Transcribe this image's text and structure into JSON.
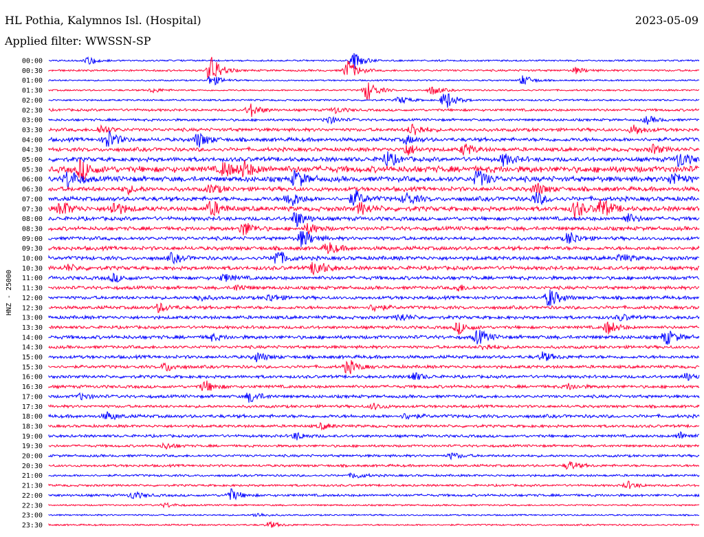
{
  "header": {
    "station": "HL Pothia, Kalymnos Isl. (Hospital)",
    "date": "2023-05-09",
    "filter": "Applied filter: WWSSN-SP"
  },
  "chart_data": {
    "type": "line",
    "title": "HL Pothia, Kalymnos Isl. (Hospital)",
    "subtitle": "Applied filter: WWSSN-SP",
    "date": "2023-05-09",
    "ylabel": "HNZ - 25000",
    "xlabel": "",
    "grid": false,
    "colors": {
      "odd_rows": "#0000ff",
      "even_rows": "#ff0033"
    },
    "rows": [
      {
        "label": "00:00",
        "color": "#0000ff",
        "level": 0.15,
        "events": [
          [
            0.06,
            0.6
          ],
          [
            0.47,
            1.0
          ]
        ]
      },
      {
        "label": "00:30",
        "color": "#ff0033",
        "level": 0.2,
        "events": [
          [
            0.25,
            2.0
          ],
          [
            0.46,
            1.4
          ],
          [
            0.81,
            0.4
          ]
        ]
      },
      {
        "label": "01:00",
        "color": "#0000ff",
        "level": 0.12,
        "events": [
          [
            0.25,
            0.8
          ],
          [
            0.73,
            0.7
          ]
        ]
      },
      {
        "label": "01:30",
        "color": "#ff0033",
        "level": 0.15,
        "events": [
          [
            0.16,
            0.3
          ],
          [
            0.49,
            1.4
          ],
          [
            0.59,
            0.6
          ]
        ]
      },
      {
        "label": "02:00",
        "color": "#0000ff",
        "level": 0.18,
        "events": [
          [
            0.54,
            0.5
          ],
          [
            0.61,
            1.3
          ]
        ]
      },
      {
        "label": "02:30",
        "color": "#ff0033",
        "level": 0.3,
        "events": [
          [
            0.31,
            0.9
          ],
          [
            0.44,
            0.4
          ]
        ]
      },
      {
        "label": "03:00",
        "color": "#0000ff",
        "level": 0.3,
        "events": [
          [
            0.43,
            0.5
          ],
          [
            0.92,
            0.5
          ]
        ]
      },
      {
        "label": "03:30",
        "color": "#ff0033",
        "level": 0.45,
        "events": [
          [
            0.08,
            0.6
          ],
          [
            0.56,
            0.9
          ],
          [
            0.9,
            0.7
          ]
        ]
      },
      {
        "label": "04:00",
        "color": "#0000ff",
        "level": 0.55,
        "events": [
          [
            0.09,
            1.3
          ],
          [
            0.23,
            1.0
          ],
          [
            0.55,
            0.5
          ]
        ]
      },
      {
        "label": "04:30",
        "color": "#ff0033",
        "level": 0.55,
        "events": [
          [
            0.55,
            0.8
          ],
          [
            0.64,
            0.8
          ],
          [
            0.93,
            0.6
          ]
        ]
      },
      {
        "label": "05:00",
        "color": "#0000ff",
        "level": 0.65,
        "events": [
          [
            0.52,
            1.0
          ],
          [
            0.7,
            0.8
          ],
          [
            0.97,
            1.1
          ]
        ]
      },
      {
        "label": "05:30",
        "color": "#ff0033",
        "level": 1.0,
        "events": [
          [
            0.05,
            1.4
          ],
          [
            0.27,
            1.0
          ],
          [
            0.3,
            1.0
          ]
        ]
      },
      {
        "label": "06:00",
        "color": "#0000ff",
        "level": 0.8,
        "events": [
          [
            0.03,
            1.3
          ],
          [
            0.38,
            1.2
          ],
          [
            0.66,
            1.2
          ],
          [
            0.96,
            1.0
          ]
        ]
      },
      {
        "label": "06:30",
        "color": "#ff0033",
        "level": 0.65,
        "events": [
          [
            0.12,
            0.5
          ],
          [
            0.25,
            0.6
          ],
          [
            0.75,
            0.8
          ]
        ]
      },
      {
        "label": "07:00",
        "color": "#0000ff",
        "level": 0.65,
        "events": [
          [
            0.37,
            1.2
          ],
          [
            0.47,
            1.1
          ],
          [
            0.55,
            0.8
          ],
          [
            0.75,
            0.8
          ]
        ]
      },
      {
        "label": "07:30",
        "color": "#ff0033",
        "level": 0.7,
        "events": [
          [
            0.02,
            1.0
          ],
          [
            0.1,
            1.0
          ],
          [
            0.25,
            1.1
          ],
          [
            0.48,
            0.8
          ],
          [
            0.81,
            1.2
          ],
          [
            0.85,
            1.4
          ]
        ]
      },
      {
        "label": "08:00",
        "color": "#0000ff",
        "level": 0.55,
        "events": [
          [
            0.38,
            1.1
          ],
          [
            0.89,
            0.6
          ]
        ]
      },
      {
        "label": "08:30",
        "color": "#ff0033",
        "level": 0.55,
        "events": [
          [
            0.3,
            1.0
          ],
          [
            0.4,
            0.7
          ]
        ]
      },
      {
        "label": "09:00",
        "color": "#0000ff",
        "level": 0.5,
        "events": [
          [
            0.39,
            1.2
          ],
          [
            0.8,
            0.9
          ]
        ]
      },
      {
        "label": "09:30",
        "color": "#ff0033",
        "level": 0.55,
        "events": [
          [
            0.43,
            0.8
          ]
        ]
      },
      {
        "label": "10:00",
        "color": "#0000ff",
        "level": 0.55,
        "events": [
          [
            0.35,
            1.1
          ],
          [
            0.19,
            0.6
          ],
          [
            0.88,
            0.5
          ]
        ]
      },
      {
        "label": "10:30",
        "color": "#ff0033",
        "level": 0.55,
        "events": [
          [
            0.41,
            1.2
          ],
          [
            0.03,
            0.4
          ]
        ]
      },
      {
        "label": "11:00",
        "color": "#0000ff",
        "level": 0.5,
        "events": [
          [
            0.1,
            0.5
          ],
          [
            0.27,
            0.5
          ]
        ]
      },
      {
        "label": "11:30",
        "color": "#ff0033",
        "level": 0.45,
        "events": [
          [
            0.29,
            0.4
          ],
          [
            0.63,
            0.4
          ]
        ]
      },
      {
        "label": "12:00",
        "color": "#0000ff",
        "level": 0.45,
        "events": [
          [
            0.77,
            1.3
          ],
          [
            0.34,
            0.5
          ],
          [
            0.23,
            0.4
          ]
        ]
      },
      {
        "label": "12:30",
        "color": "#ff0033",
        "level": 0.45,
        "events": [
          [
            0.17,
            0.6
          ],
          [
            0.5,
            0.5
          ]
        ]
      },
      {
        "label": "13:00",
        "color": "#0000ff",
        "level": 0.45,
        "events": [
          [
            0.54,
            0.5
          ],
          [
            0.88,
            0.4
          ]
        ]
      },
      {
        "label": "13:30",
        "color": "#ff0033",
        "level": 0.4,
        "events": [
          [
            0.63,
            0.8
          ],
          [
            0.86,
            0.9
          ]
        ]
      },
      {
        "label": "14:00",
        "color": "#0000ff",
        "level": 0.5,
        "events": [
          [
            0.66,
            1.0
          ],
          [
            0.95,
            1.0
          ],
          [
            0.25,
            0.4
          ]
        ]
      },
      {
        "label": "14:30",
        "color": "#ff0033",
        "level": 0.4,
        "events": [
          [
            0.67,
            0.4
          ]
        ]
      },
      {
        "label": "15:00",
        "color": "#0000ff",
        "level": 0.45,
        "events": [
          [
            0.32,
            0.6
          ],
          [
            0.76,
            0.6
          ]
        ]
      },
      {
        "label": "15:30",
        "color": "#ff0033",
        "level": 0.4,
        "events": [
          [
            0.46,
            1.0
          ],
          [
            0.18,
            0.6
          ]
        ]
      },
      {
        "label": "16:00",
        "color": "#0000ff",
        "level": 0.4,
        "events": [
          [
            0.56,
            0.6
          ],
          [
            0.98,
            0.5
          ]
        ]
      },
      {
        "label": "16:30",
        "color": "#ff0033",
        "level": 0.4,
        "events": [
          [
            0.24,
            0.8
          ],
          [
            0.8,
            0.4
          ]
        ]
      },
      {
        "label": "17:00",
        "color": "#0000ff",
        "level": 0.4,
        "events": [
          [
            0.31,
            0.8
          ],
          [
            0.05,
            0.4
          ]
        ]
      },
      {
        "label": "17:30",
        "color": "#ff0033",
        "level": 0.35,
        "events": [
          [
            0.5,
            0.4
          ]
        ]
      },
      {
        "label": "18:00",
        "color": "#0000ff",
        "level": 0.45,
        "events": [
          [
            0.09,
            0.5
          ],
          [
            0.55,
            0.4
          ]
        ]
      },
      {
        "label": "18:30",
        "color": "#ff0033",
        "level": 0.35,
        "events": [
          [
            0.42,
            0.4
          ]
        ]
      },
      {
        "label": "19:00",
        "color": "#0000ff",
        "level": 0.35,
        "events": [
          [
            0.38,
            0.5
          ],
          [
            0.97,
            0.5
          ]
        ]
      },
      {
        "label": "19:30",
        "color": "#ff0033",
        "level": 0.3,
        "events": [
          [
            0.18,
            0.4
          ]
        ]
      },
      {
        "label": "20:00",
        "color": "#0000ff",
        "level": 0.3,
        "events": [
          [
            0.62,
            0.4
          ]
        ]
      },
      {
        "label": "20:30",
        "color": "#ff0033",
        "level": 0.3,
        "events": [
          [
            0.8,
            0.6
          ]
        ]
      },
      {
        "label": "21:00",
        "color": "#0000ff",
        "level": 0.25,
        "events": [
          [
            0.47,
            0.4
          ]
        ]
      },
      {
        "label": "21:30",
        "color": "#ff0033",
        "level": 0.25,
        "events": [
          [
            0.89,
            0.5
          ]
        ]
      },
      {
        "label": "22:00",
        "color": "#0000ff",
        "level": 0.3,
        "events": [
          [
            0.13,
            0.5
          ],
          [
            0.28,
            0.8
          ]
        ]
      },
      {
        "label": "22:30",
        "color": "#ff0033",
        "level": 0.15,
        "events": [
          [
            0.18,
            0.3
          ]
        ]
      },
      {
        "label": "23:00",
        "color": "#0000ff",
        "level": 0.12,
        "events": [
          [
            0.32,
            0.3
          ]
        ]
      },
      {
        "label": "23:30",
        "color": "#ff0033",
        "level": 0.15,
        "events": [
          [
            0.34,
            0.4
          ]
        ]
      }
    ]
  }
}
